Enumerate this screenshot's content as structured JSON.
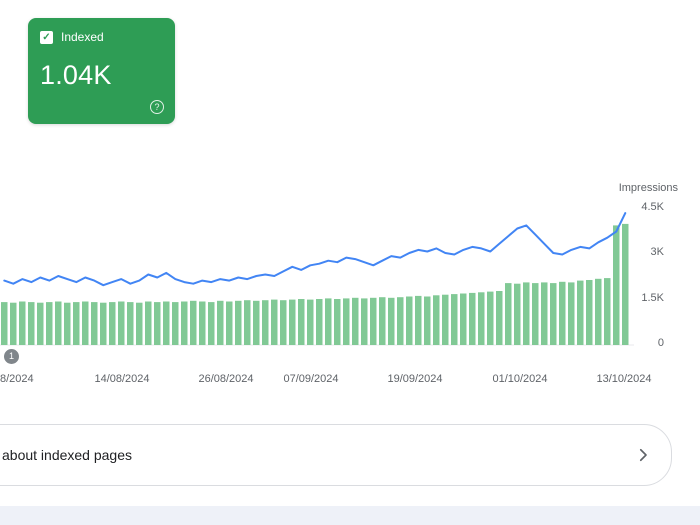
{
  "summary_card": {
    "label": "Indexed",
    "value": "1.04K",
    "check_glyph": "✓",
    "help_glyph": "?",
    "color": "#2e9d55"
  },
  "chart_data": {
    "type": "bar",
    "subtype": "combo-bar-line",
    "right_axis": {
      "label": "Impressions",
      "ylim": [
        0,
        4.5
      ],
      "tick_labels": [
        "4.5K",
        "3K",
        "1.5K",
        "0"
      ]
    },
    "x_tick_labels": [
      "8/2024",
      "14/08/2024",
      "26/08/2024",
      "07/09/2024",
      "19/09/2024",
      "01/10/2024",
      "13/10/2024"
    ],
    "annotation_marker": "1",
    "grid": false,
    "legend": "none",
    "series": [
      {
        "name": "Indexed",
        "type": "bar",
        "color": "#81c995",
        "values": [
          1.4,
          1.38,
          1.42,
          1.4,
          1.38,
          1.4,
          1.42,
          1.38,
          1.4,
          1.42,
          1.4,
          1.38,
          1.4,
          1.42,
          1.4,
          1.38,
          1.42,
          1.4,
          1.42,
          1.4,
          1.42,
          1.44,
          1.42,
          1.4,
          1.44,
          1.42,
          1.44,
          1.46,
          1.44,
          1.46,
          1.48,
          1.46,
          1.48,
          1.5,
          1.48,
          1.5,
          1.52,
          1.5,
          1.52,
          1.54,
          1.52,
          1.54,
          1.56,
          1.54,
          1.56,
          1.58,
          1.6,
          1.58,
          1.62,
          1.64,
          1.66,
          1.68,
          1.7,
          1.72,
          1.74,
          1.76,
          2.02,
          2.0,
          2.04,
          2.02,
          2.04,
          2.02,
          2.06,
          2.04,
          2.1,
          2.12,
          2.16,
          2.18,
          3.9,
          3.95
        ]
      },
      {
        "name": "Impressions",
        "type": "line",
        "color": "#4285f4",
        "values": [
          2.1,
          2.0,
          2.15,
          2.05,
          2.2,
          2.1,
          2.25,
          2.15,
          2.05,
          2.2,
          2.1,
          1.95,
          2.05,
          2.15,
          2.0,
          2.1,
          2.3,
          2.2,
          2.35,
          2.15,
          2.05,
          2.0,
          2.1,
          2.05,
          2.15,
          2.1,
          2.2,
          2.15,
          2.25,
          2.3,
          2.25,
          2.4,
          2.55,
          2.45,
          2.6,
          2.65,
          2.75,
          2.7,
          2.85,
          2.8,
          2.7,
          2.6,
          2.75,
          2.9,
          2.85,
          3.0,
          3.1,
          3.05,
          3.15,
          3.0,
          2.95,
          3.1,
          3.2,
          3.15,
          3.05,
          3.3,
          3.55,
          3.8,
          3.9,
          3.6,
          3.3,
          3.0,
          2.95,
          3.1,
          3.2,
          3.15,
          3.35,
          3.5,
          3.7,
          4.3
        ]
      }
    ]
  },
  "footer_card": {
    "label": "about indexed pages"
  }
}
